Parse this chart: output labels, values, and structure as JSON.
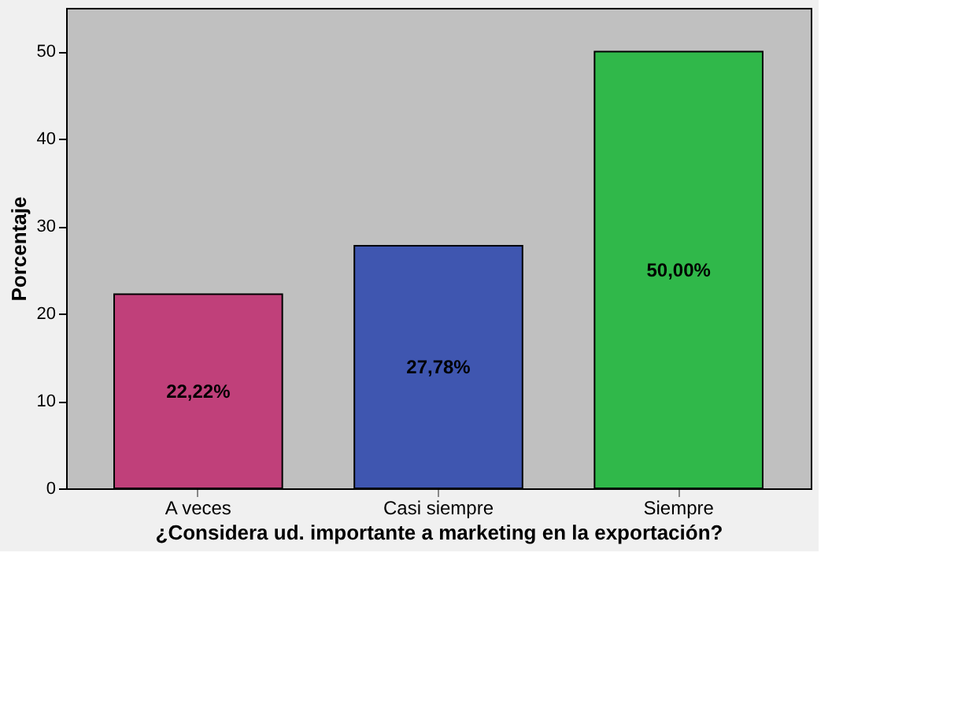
{
  "chart_data": {
    "type": "bar",
    "xlabel": "¿Considera ud. importante a marketing en la exportación?",
    "ylabel": "Porcentaje",
    "categories": [
      "A veces",
      "Casi siempre",
      "Siempre"
    ],
    "values": [
      22.22,
      27.78,
      50.0
    ],
    "colors": [
      "#c0407a",
      "#3f56b0",
      "#30b84a"
    ],
    "value_labels": [
      "22,22%",
      "27,78%",
      "50,00%"
    ],
    "ylim": [
      0,
      55
    ],
    "yticks": [
      0,
      10,
      20,
      30,
      40,
      50
    ],
    "grid": false,
    "legend": false
  }
}
